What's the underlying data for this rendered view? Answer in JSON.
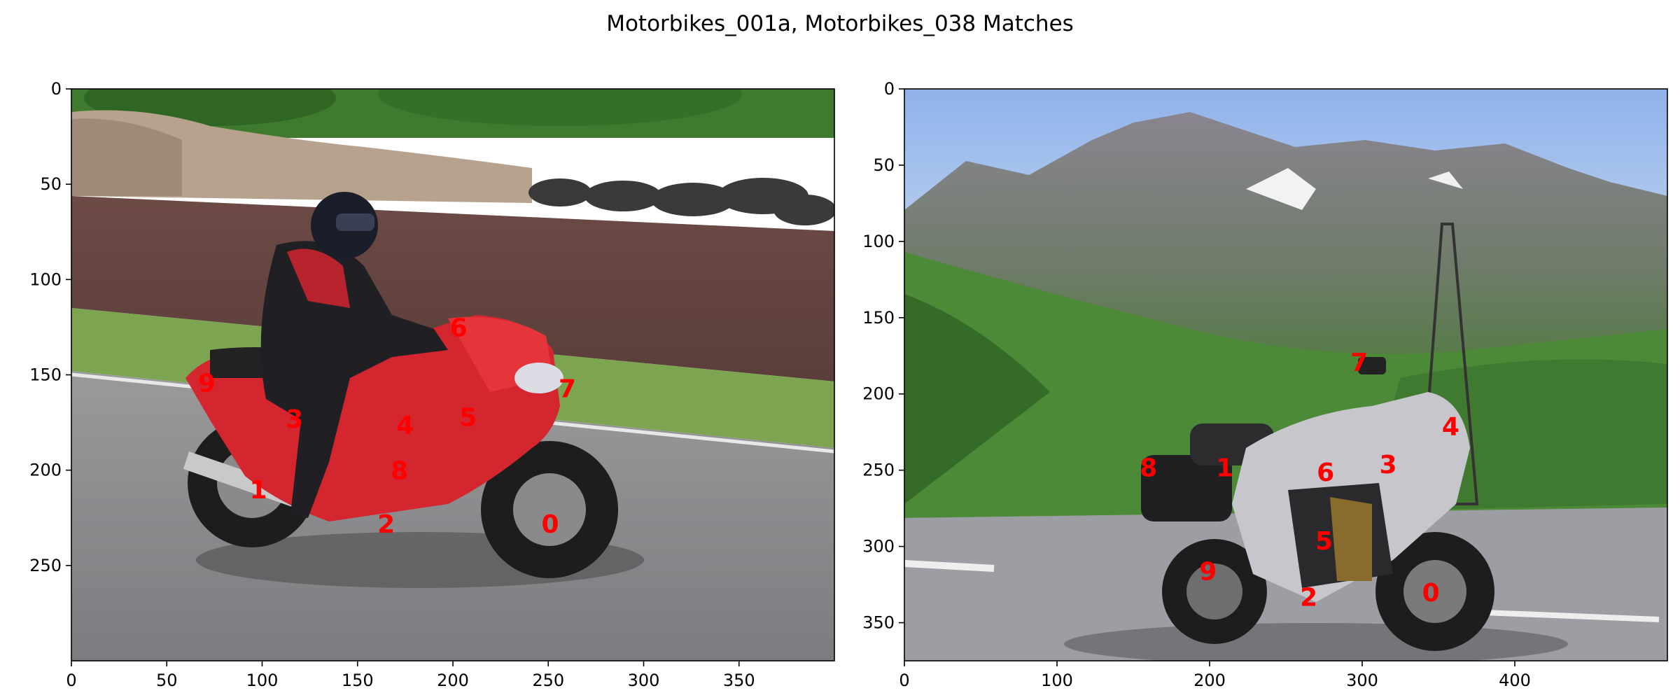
{
  "title": "Motorbikes_001a, Motorbikes_038 Matches",
  "colors": {
    "keypoint_label": "#ff0000",
    "axis": "#000000",
    "background": "#ffffff"
  },
  "chart_data": [
    {
      "type": "image",
      "image_name": "Motorbikes_001a",
      "xlim": [
        0,
        400
      ],
      "ylim": [
        300,
        0
      ],
      "x_ticks": [
        0,
        50,
        100,
        150,
        200,
        250,
        300,
        350
      ],
      "y_ticks": [
        0,
        50,
        100,
        150,
        200,
        250
      ],
      "keypoints": [
        {
          "label": "0",
          "x": 251,
          "y": 228
        },
        {
          "label": "1",
          "x": 98,
          "y": 210
        },
        {
          "label": "2",
          "x": 165,
          "y": 228
        },
        {
          "label": "3",
          "x": 117,
          "y": 173
        },
        {
          "label": "4",
          "x": 175,
          "y": 176
        },
        {
          "label": "5",
          "x": 208,
          "y": 172
        },
        {
          "label": "6",
          "x": 203,
          "y": 125
        },
        {
          "label": "7",
          "x": 260,
          "y": 157
        },
        {
          "label": "8",
          "x": 172,
          "y": 200
        },
        {
          "label": "9",
          "x": 71,
          "y": 154
        }
      ]
    },
    {
      "type": "image",
      "image_name": "Motorbikes_038",
      "xlim": [
        0,
        500
      ],
      "ylim": [
        375,
        0
      ],
      "x_ticks": [
        0,
        100,
        200,
        300,
        400
      ],
      "y_ticks": [
        0,
        50,
        100,
        150,
        200,
        250,
        300,
        350
      ],
      "keypoints": [
        {
          "label": "0",
          "x": 345,
          "y": 330
        },
        {
          "label": "1",
          "x": 210,
          "y": 248
        },
        {
          "label": "2",
          "x": 265,
          "y": 333
        },
        {
          "label": "3",
          "x": 317,
          "y": 246
        },
        {
          "label": "4",
          "x": 358,
          "y": 221
        },
        {
          "label": "5",
          "x": 275,
          "y": 296
        },
        {
          "label": "6",
          "x": 276,
          "y": 251
        },
        {
          "label": "7",
          "x": 298,
          "y": 179
        },
        {
          "label": "8",
          "x": 160,
          "y": 248
        },
        {
          "label": "9",
          "x": 199,
          "y": 316
        }
      ]
    }
  ]
}
